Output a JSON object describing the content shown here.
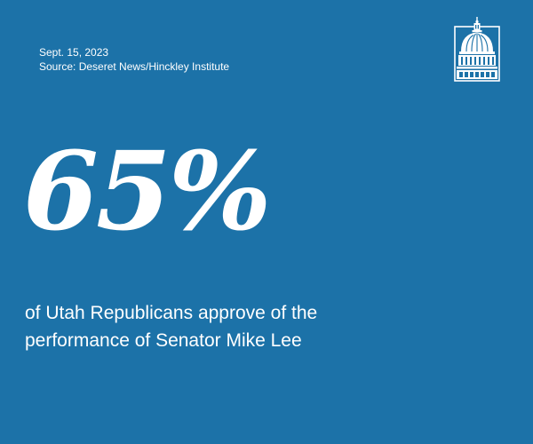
{
  "header": {
    "date": "Sept. 15, 2023",
    "source": "Source: Deseret News/Hinckley Institute"
  },
  "logo": {
    "icon": "capitol-dome-icon"
  },
  "stat": {
    "value": "65%"
  },
  "caption": {
    "line1": "of Utah Republicans approve of the",
    "line2": "performance of Senator Mike Lee"
  },
  "colors": {
    "background": "#1c72a8",
    "text": "#ffffff"
  }
}
